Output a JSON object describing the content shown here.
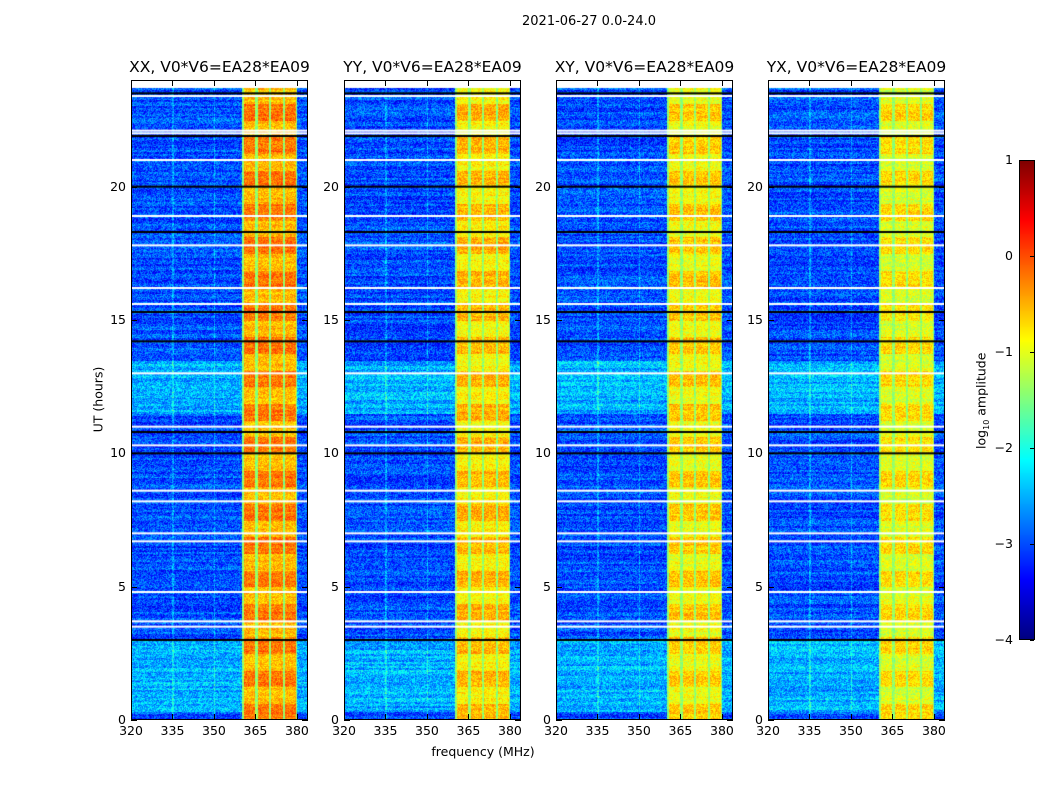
{
  "figure_title": "2021-06-27 0.0-24.0",
  "chart_data": {
    "type": "heatmap",
    "title": "2021-06-27 0.0-24.0",
    "xlabel": "frequency (MHz)",
    "ylabel": "UT (hours)",
    "xlim": [
      320,
      384
    ],
    "ylim": [
      0,
      24
    ],
    "xticks": [
      320,
      335,
      350,
      365,
      380
    ],
    "yticks": [
      0,
      5,
      10,
      15,
      20
    ],
    "panels": [
      {
        "title": "XX, V0*V6=EA28*EA09",
        "band_level": 0.0
      },
      {
        "title": "YY, V0*V6=EA28*EA09",
        "band_level": -0.3
      },
      {
        "title": "XY, V0*V6=EA28*EA09",
        "band_level": -0.4
      },
      {
        "title": "YX, V0*V6=EA28*EA09",
        "band_level": -0.5
      }
    ],
    "background_log_amplitude": -3.0,
    "bright_band_mhz": [
      360,
      380
    ],
    "band_channel_spacing_mhz": 5,
    "flagged_hours_white": [
      23.4,
      22.1,
      22.0,
      21.0,
      18.9,
      17.8,
      16.2,
      15.6,
      13.0,
      11.0,
      10.3,
      8.6,
      8.2,
      7.0,
      6.7,
      4.8,
      3.7,
      3.5
    ],
    "flagged_hours_black": [
      23.5,
      21.9,
      20.0,
      18.3,
      15.3,
      14.2,
      10.8,
      10.0,
      3.0
    ],
    "colorbar": {
      "label_prefix": "log",
      "label_sub": "10",
      "label_suffix": " amplitude",
      "colormap": "jet",
      "range": [
        -4,
        1
      ],
      "ticks": [
        1,
        0,
        -1,
        -2,
        -3,
        -4
      ],
      "tick_labels": [
        "1",
        "0",
        "−1",
        "−2",
        "−3",
        "−4"
      ]
    }
  }
}
